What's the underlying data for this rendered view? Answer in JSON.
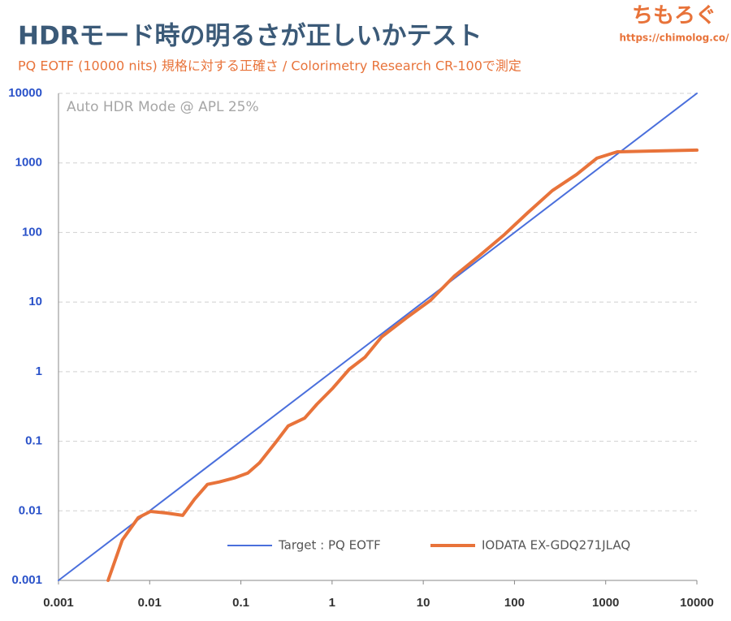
{
  "chart_data": {
    "type": "line",
    "title": "HDRモード時の明るさが正しいかテスト",
    "subtitle": "PQ EOTF (10000 nits) 規格に対する正確さ / Colorimetry Research CR-100で測定",
    "annotation": "Auto HDR Mode @ APL 25%",
    "brand": "ちもろぐ",
    "url": "https://chimolog.co/",
    "xlog": true,
    "ylog": true,
    "grid": true,
    "legend": "bottom-right",
    "xlim": [
      0.001,
      10000
    ],
    "ylim": [
      0.001,
      10000
    ],
    "xticks": [
      0.001,
      0.01,
      0.1,
      1,
      10,
      100,
      1000,
      10000
    ],
    "yticks": [
      0.001,
      0.01,
      0.1,
      1,
      10,
      100,
      1000,
      10000
    ],
    "series": [
      {
        "name": "Target : PQ EOTF",
        "color": "#4a6fdc",
        "width": 2,
        "x": [
          0.001,
          10000
        ],
        "values": [
          0.001,
          10000
        ]
      },
      {
        "name": "IODATA EX-GDQ271JLAQ",
        "color": "#e8733a",
        "width": 4,
        "x": [
          0.0035,
          0.005,
          0.0075,
          0.0102,
          0.0153,
          0.023,
          0.031,
          0.043,
          0.058,
          0.087,
          0.119,
          0.16,
          0.24,
          0.33,
          0.5,
          0.68,
          1.02,
          1.54,
          2.3,
          3.5,
          6.5,
          12,
          22,
          41,
          76,
          140,
          260,
          480,
          800,
          1340,
          3020,
          10000
        ],
        "values": [
          0.001,
          0.0038,
          0.008,
          0.0098,
          0.0093,
          0.0086,
          0.0147,
          0.024,
          0.026,
          0.03,
          0.035,
          0.049,
          0.096,
          0.166,
          0.215,
          0.34,
          0.58,
          1.08,
          1.62,
          3.16,
          5.9,
          10.6,
          23.8,
          46,
          91,
          193,
          400,
          683,
          1170,
          1445,
          1480,
          1530
        ]
      }
    ]
  }
}
